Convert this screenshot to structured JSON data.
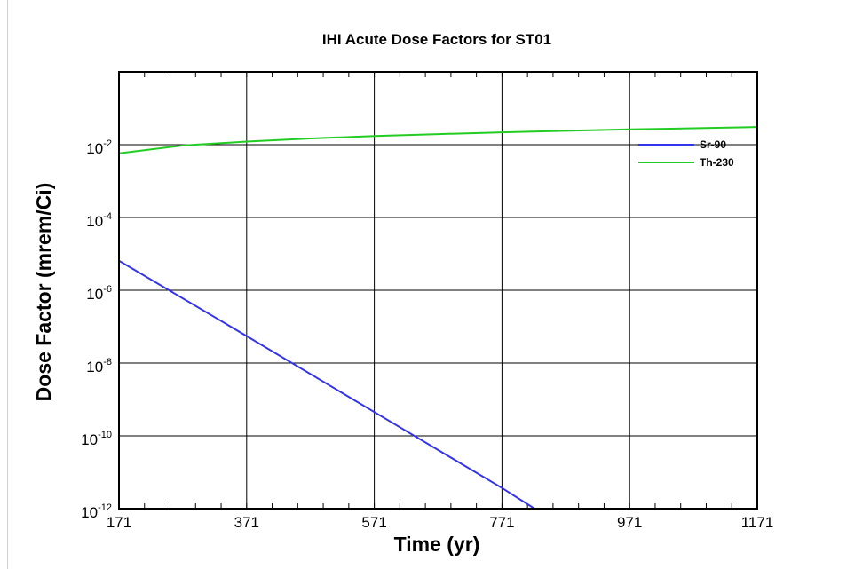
{
  "chart_data": {
    "type": "line",
    "title": "IHI Acute Dose Factors for ST01",
    "xlabel": "Time (yr)",
    "ylabel": "Dose Factor (mrem/Ci)",
    "xlim": [
      171,
      1171
    ],
    "ylim": [
      1e-12,
      1
    ],
    "yscale": "log",
    "x_ticks": [
      171,
      371,
      571,
      771,
      971,
      1171
    ],
    "x_tick_labels": [
      "171",
      "371",
      "571",
      "771",
      "971",
      "1171"
    ],
    "y_ticks": [
      1e-12,
      1e-10,
      1e-08,
      1e-06,
      0.0001,
      0.01
    ],
    "y_tick_labels": [
      {
        "base": "10",
        "exp": "-12"
      },
      {
        "base": "10",
        "exp": "-10"
      },
      {
        "base": "10",
        "exp": "-8"
      },
      {
        "base": "10",
        "exp": "-6"
      },
      {
        "base": "10",
        "exp": "-4"
      },
      {
        "base": "10",
        "exp": "-2"
      }
    ],
    "grid": true,
    "legend_position": "top-right",
    "series": [
      {
        "name": "Sr-90",
        "color": "#3333ee",
        "x": [
          171,
          371,
          571,
          771,
          822
        ],
        "y": [
          6.5e-06,
          5.5e-08,
          4.5e-10,
          3.7e-12,
          1e-12
        ]
      },
      {
        "name": "Th-230",
        "color": "#22cc22",
        "x": [
          171,
          271,
          371,
          471,
          571,
          671,
          771,
          871,
          971,
          1071,
          1171
        ],
        "y": [
          0.0058,
          0.0095,
          0.0122,
          0.0148,
          0.0172,
          0.0195,
          0.0218,
          0.024,
          0.0262,
          0.0283,
          0.0305
        ]
      }
    ]
  }
}
